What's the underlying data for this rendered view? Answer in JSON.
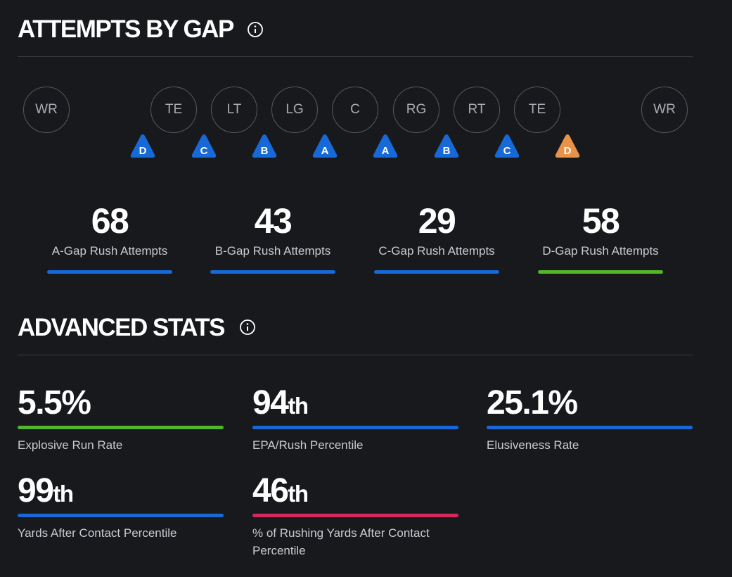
{
  "header": {
    "title": "ATTEMPTS BY GAP"
  },
  "formation": {
    "players": [
      "WR",
      "TE",
      "LT",
      "LG",
      "C",
      "RG",
      "RT",
      "TE",
      "WR"
    ]
  },
  "gaps": [
    {
      "label": "D",
      "color": "#1769d8"
    },
    {
      "label": "C",
      "color": "#1769d8"
    },
    {
      "label": "B",
      "color": "#1769d8"
    },
    {
      "label": "A",
      "color": "#1769d8"
    },
    {
      "label": "A",
      "color": "#1769d8"
    },
    {
      "label": "B",
      "color": "#1769d8"
    },
    {
      "label": "C",
      "color": "#1769d8"
    },
    {
      "label": "D",
      "color": "#e8924a"
    }
  ],
  "gap_attempts": [
    {
      "value": 68,
      "label": "A-Gap Rush Attempts",
      "color": "#1769d8"
    },
    {
      "value": 43,
      "label": "B-Gap Rush Attempts",
      "color": "#1769d8"
    },
    {
      "value": 29,
      "label": "C-Gap Rush Attempts",
      "color": "#1769d8"
    },
    {
      "value": 58,
      "label": "D-Gap Rush Attempts",
      "color": "#52b52a"
    }
  ],
  "advanced": {
    "title": "ADVANCED STATS",
    "stats": [
      {
        "value": "5.5%",
        "label": "Explosive Run Rate",
        "color": "#52b52a"
      },
      {
        "value": "94",
        "suffix": "th",
        "label": "EPA/Rush Percentile",
        "color": "#1769d8"
      },
      {
        "value": "25.1%",
        "label": "Elusiveness Rate",
        "color": "#1769d8"
      },
      {
        "value": "99",
        "suffix": "th",
        "label": "Yards After Contact Percentile",
        "color": "#1769d8"
      },
      {
        "value": "46",
        "suffix": "th",
        "label": "% of Rushing Yards After Contact Percentile",
        "color": "#d6285a"
      }
    ]
  }
}
